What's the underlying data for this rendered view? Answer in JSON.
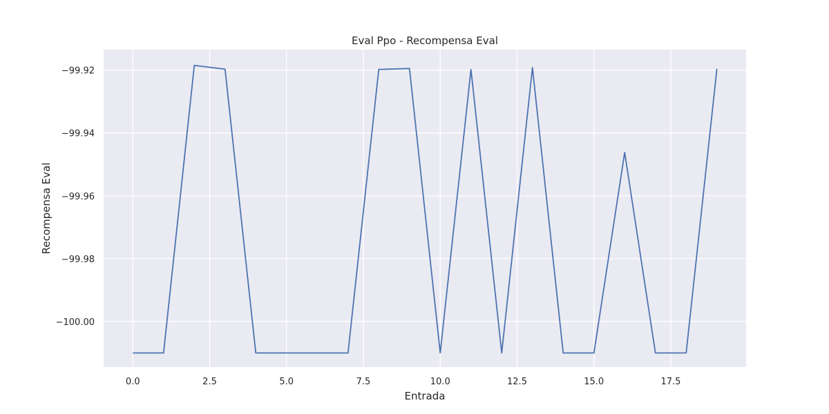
{
  "chart_data": {
    "type": "line",
    "title": "Eval Ppo - Recompensa Eval",
    "xlabel": "Entrada",
    "ylabel": "Recompensa Eval",
    "xlim": [
      -0.95,
      19.95
    ],
    "ylim": [
      -100.0145,
      -99.9135
    ],
    "x_ticks": [
      0.0,
      2.5,
      5.0,
      7.5,
      10.0,
      12.5,
      15.0,
      17.5
    ],
    "x_tick_labels": [
      "0.0",
      "2.5",
      "5.0",
      "7.5",
      "10.0",
      "12.5",
      "15.0",
      "17.5"
    ],
    "y_ticks": [
      -99.92,
      -99.94,
      -99.96,
      -99.98,
      -100.0
    ],
    "y_tick_labels": [
      "−99.92",
      "−99.94",
      "−99.96",
      "−99.98",
      "−100.00"
    ],
    "grid": true,
    "background": "#eaeaf2",
    "line_color": "#4c72b0",
    "series": [
      {
        "x": [
          0,
          1,
          2,
          3,
          4,
          5,
          6,
          7,
          8,
          9,
          10,
          11,
          12,
          13,
          14,
          15,
          16,
          17,
          18,
          19
        ],
        "values": [
          -100.01,
          -100.01,
          -99.9185,
          -99.9197,
          -100.01,
          -100.01,
          -100.01,
          -100.01,
          -99.9198,
          -99.9195,
          -100.01,
          -99.9198,
          -100.01,
          -99.9192,
          -100.01,
          -100.01,
          -99.9462,
          -100.01,
          -100.01,
          -99.9196
        ]
      }
    ]
  }
}
